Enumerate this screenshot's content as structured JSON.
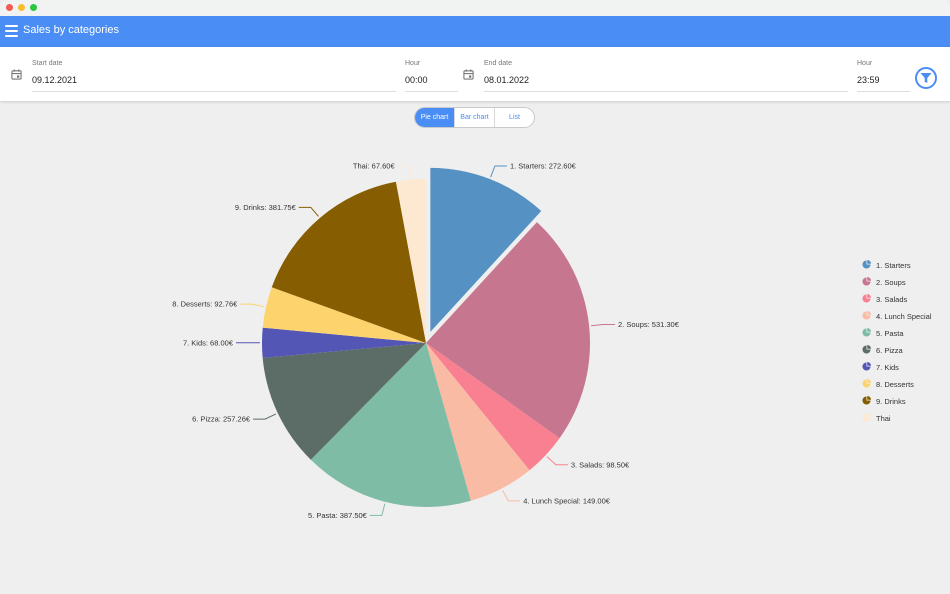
{
  "window": {
    "title": "Sales by categories"
  },
  "filters": {
    "start_date_label": "Start date",
    "start_date": "09.12.2021",
    "start_hour_label": "Hour",
    "start_hour": "00:00",
    "end_date_label": "End date",
    "end_date": "08.01.2022",
    "end_hour_label": "Hour",
    "end_hour": "23:59"
  },
  "view_tabs": [
    {
      "label": "Pie chart",
      "active": true
    },
    {
      "label": "Bar chart",
      "active": false
    },
    {
      "label": "List",
      "active": false
    }
  ],
  "colors": {
    "accent": "#4a8df5"
  },
  "chart_data": {
    "type": "pie",
    "currency": "€",
    "exploded": "1. Starters",
    "legend_position": "right",
    "slices": [
      {
        "label": "1. Starters",
        "value": 272.6,
        "value_label": "272.60€",
        "color": "#5591c2"
      },
      {
        "label": "2. Soups",
        "value": 531.3,
        "value_label": "531.30€",
        "color": "#c7768f"
      },
      {
        "label": "3. Salads",
        "value": 98.5,
        "value_label": "98.50€",
        "color": "#f88090"
      },
      {
        "label": "4. Lunch Special",
        "value": 149.0,
        "value_label": "149.00€",
        "color": "#f9bba3"
      },
      {
        "label": "5. Pasta",
        "value": 387.5,
        "value_label": "387.50€",
        "color": "#7fbca6"
      },
      {
        "label": "6. Pizza",
        "value": 257.26,
        "value_label": "257.26€",
        "color": "#5c6d67"
      },
      {
        "label": "7. Kids",
        "value": 68.0,
        "value_label": "68.00€",
        "color": "#5356b4"
      },
      {
        "label": "8. Desserts",
        "value": 92.76,
        "value_label": "92.76€",
        "color": "#fdd36e"
      },
      {
        "label": "9. Drinks",
        "value": 381.75,
        "value_label": "381.75€",
        "color": "#865d00"
      },
      {
        "label": "Thai",
        "value": 67.6,
        "value_label": "67.60€",
        "color": "#fde8d1"
      }
    ]
  }
}
